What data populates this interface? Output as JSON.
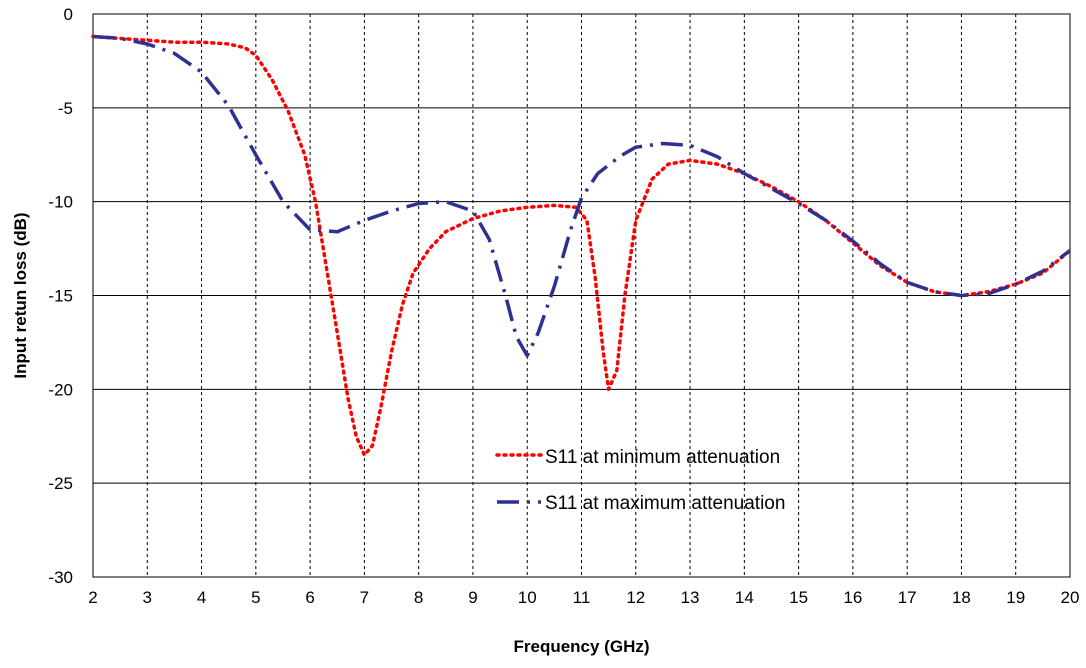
{
  "chart_data": {
    "type": "line",
    "title": "",
    "xlabel": "Frequency (GHz)",
    "ylabel": "Input  retun loss (dB)",
    "xlim": [
      2,
      20
    ],
    "ylim": [
      -30,
      0
    ],
    "x_ticks": [
      2,
      3,
      4,
      5,
      6,
      7,
      8,
      9,
      10,
      11,
      12,
      13,
      14,
      15,
      16,
      17,
      18,
      19,
      20
    ],
    "y_ticks": [
      0,
      -5,
      -10,
      -15,
      -20,
      -25,
      -30
    ],
    "grid": {
      "x": "dashed vertical gridlines at every 1 GHz",
      "y": "solid horizontal gridlines at every 5 dB"
    },
    "legend_position": "lower-center",
    "series": [
      {
        "name": "S11 at minimum attenuation",
        "style": "dotted",
        "color": "#ff0000",
        "x": [
          2,
          2.5,
          3,
          3.5,
          4,
          4.5,
          4.8,
          5,
          5.3,
          5.6,
          5.9,
          6.1,
          6.3,
          6.5,
          6.7,
          6.85,
          7,
          7.15,
          7.3,
          7.5,
          7.7,
          7.9,
          8.2,
          8.5,
          9,
          9.5,
          10,
          10.5,
          10.9,
          11.1,
          11.25,
          11.4,
          11.5,
          11.65,
          11.8,
          12,
          12.3,
          12.6,
          13,
          13.5,
          14,
          14.5,
          15,
          15.5,
          16,
          16.5,
          17,
          17.5,
          18,
          18.5,
          19,
          19.5,
          20
        ],
        "y": [
          -1.2,
          -1.3,
          -1.4,
          -1.5,
          -1.5,
          -1.6,
          -1.8,
          -2.2,
          -3.5,
          -5.2,
          -7.5,
          -10,
          -13.5,
          -17,
          -20.5,
          -22.5,
          -23.5,
          -23,
          -21,
          -18,
          -15.5,
          -13.8,
          -12.5,
          -11.6,
          -10.9,
          -10.5,
          -10.3,
          -10.2,
          -10.3,
          -11,
          -14,
          -18,
          -20,
          -19,
          -15,
          -11,
          -8.8,
          -8,
          -7.8,
          -8,
          -8.5,
          -9.2,
          -10,
          -11,
          -12.2,
          -13.4,
          -14.3,
          -14.8,
          -15,
          -14.8,
          -14.4,
          -13.8,
          -12.6
        ]
      },
      {
        "name": "S11 at maximum attenuation",
        "style": "dash-dot",
        "color": "#2e3192",
        "x": [
          2,
          2.5,
          3,
          3.5,
          4,
          4.5,
          5,
          5.5,
          6,
          6.5,
          7,
          7.5,
          8,
          8.5,
          9,
          9.3,
          9.6,
          9.8,
          10,
          10.2,
          10.5,
          10.8,
          11,
          11.3,
          11.7,
          12,
          12.5,
          13,
          13.5,
          14,
          14.5,
          15,
          15.5,
          16,
          16.5,
          17,
          17.5,
          18,
          18.5,
          19,
          19.5,
          20
        ],
        "y": [
          -1.2,
          -1.3,
          -1.6,
          -2.1,
          -3.1,
          -4.9,
          -7.5,
          -10,
          -11.5,
          -11.6,
          -11,
          -10.5,
          -10.1,
          -10,
          -10.5,
          -12,
          -15,
          -17.2,
          -18.2,
          -17,
          -14.5,
          -11.5,
          -9.8,
          -8.5,
          -7.6,
          -7.1,
          -6.9,
          -7,
          -7.6,
          -8.5,
          -9.3,
          -10.1,
          -11,
          -12.1,
          -13.3,
          -14.3,
          -14.8,
          -15,
          -14.9,
          -14.4,
          -13.7,
          -12.6
        ]
      }
    ]
  }
}
